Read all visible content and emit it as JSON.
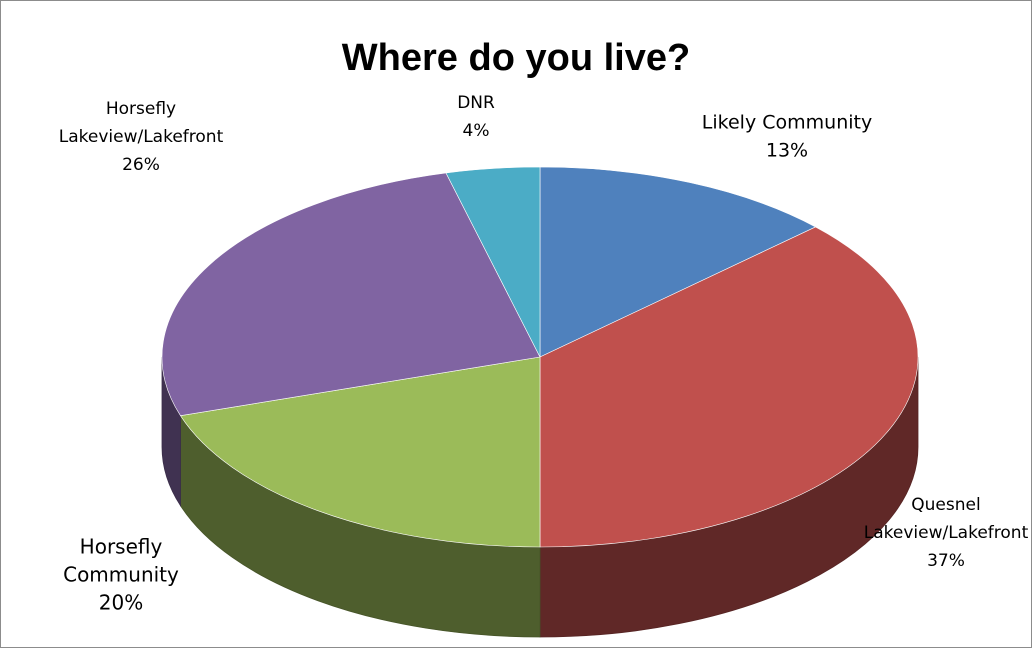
{
  "chart_data": {
    "type": "pie",
    "title": "Where do you live?",
    "slices": [
      {
        "label_lines": [
          "Likely Community"
        ],
        "percent_label": "13%",
        "value": 13,
        "color": "#4F81BD"
      },
      {
        "label_lines": [
          "Quesnel",
          "Lakeview/Lakefront"
        ],
        "percent_label": "37%",
        "value": 37,
        "color": "#C0504D"
      },
      {
        "label_lines": [
          "Horsefly",
          "Community"
        ],
        "percent_label": "20%",
        "value": 20,
        "color": "#9BBB59"
      },
      {
        "label_lines": [
          "Horsefly",
          "Lakeview/Lakefront"
        ],
        "percent_label": "26%",
        "value": 26,
        "color": "#8064A2"
      },
      {
        "label_lines": [
          "DNR"
        ],
        "percent_label": "4%",
        "value": 4,
        "color": "#4BACC6"
      }
    ],
    "style": "3d-pie",
    "legend": "none"
  }
}
